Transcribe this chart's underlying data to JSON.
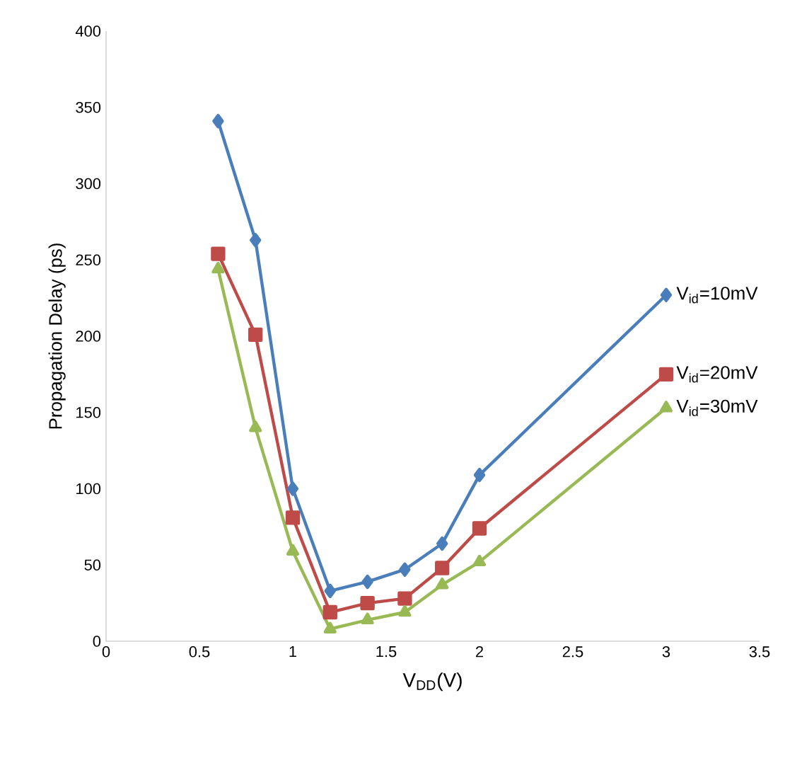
{
  "chart_data": {
    "type": "line",
    "xlabel": "V$_{DD}$(V)",
    "ylabel": "Propagation Delay (ps)",
    "x": [
      0.6,
      0.8,
      1.0,
      1.2,
      1.4,
      1.6,
      1.8,
      2.0,
      3.0
    ],
    "series": [
      {
        "name": "V$_{id}$=10mV",
        "color": "#4a7ebb",
        "marker": "diamond",
        "values": [
          341,
          263,
          100,
          33,
          39,
          47,
          64,
          109,
          227
        ]
      },
      {
        "name": "V$_{id}$=20mV",
        "color": "#be4b48",
        "marker": "square",
        "values": [
          254,
          201,
          81,
          19,
          25,
          28,
          48,
          74,
          175
        ]
      },
      {
        "name": "V$_{id}$=30mV",
        "color": "#98b954",
        "marker": "triangle",
        "values": [
          244,
          140,
          59,
          8,
          14,
          19,
          37,
          52,
          153
        ]
      }
    ],
    "xlim": [
      0,
      3.5
    ],
    "xticks": [
      0,
      0.5,
      1,
      1.5,
      2,
      2.5,
      3,
      3.5
    ],
    "ylim": [
      0,
      400
    ],
    "yticks": [
      0,
      50,
      100,
      150,
      200,
      250,
      300,
      350,
      400
    ],
    "grid": false,
    "legend": false,
    "line_style": "solid"
  }
}
